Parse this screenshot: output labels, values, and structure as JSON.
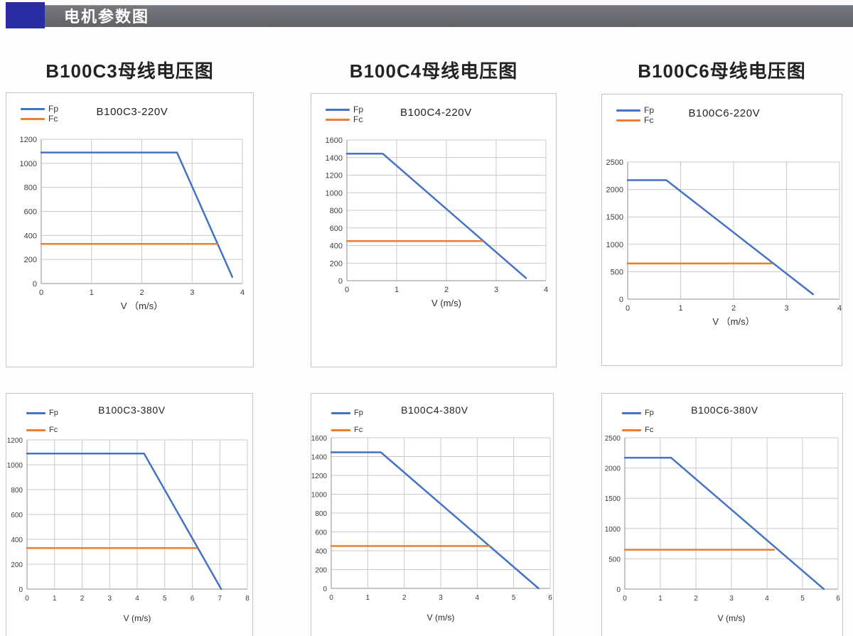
{
  "header": {
    "title": "电机参数图"
  },
  "section_titles": [
    "B100C3母线电压图",
    "B100C4母线电压图",
    "B100C6母线电压图"
  ],
  "colors": {
    "fp_blue": "#4472C4",
    "fc_orange": "#ED7D31",
    "header_accent": "#2a2da2",
    "header_bar": "#6a6a72"
  },
  "chart_data": [
    {
      "type": "line",
      "title": "B100C3-220V",
      "xlabel": "V （m/s）",
      "xlim": [
        0,
        4
      ],
      "xticks": [
        0,
        1,
        2,
        3,
        4
      ],
      "ylim": [
        0,
        1200
      ],
      "yticks": [
        0,
        200,
        400,
        600,
        800,
        1000,
        1200
      ],
      "legend": [
        "Fp",
        "Fc"
      ],
      "grid": true,
      "legend_position": "top-left",
      "series": [
        {
          "name": "Fp",
          "color": "#4472C4",
          "points": [
            [
              0,
              1090
            ],
            [
              2.7,
              1090
            ],
            [
              3.8,
              55
            ]
          ]
        },
        {
          "name": "Fc",
          "color": "#ED7D31",
          "points": [
            [
              0,
              330
            ],
            [
              3.5,
              330
            ]
          ]
        }
      ]
    },
    {
      "type": "line",
      "title": "B100C4-220V",
      "xlabel": "V (m/s)",
      "xlim": [
        0,
        4
      ],
      "xticks": [
        0,
        1,
        2,
        3,
        4
      ],
      "ylim": [
        0,
        1600
      ],
      "yticks": [
        0,
        200,
        400,
        600,
        800,
        1000,
        1200,
        1400,
        1600
      ],
      "legend": [
        "Fp",
        "Fc"
      ],
      "grid": true,
      "legend_position": "top-left",
      "series": [
        {
          "name": "Fp",
          "color": "#4472C4",
          "points": [
            [
              0,
              1445
            ],
            [
              0.72,
              1445
            ],
            [
              3.6,
              30
            ]
          ]
        },
        {
          "name": "Fc",
          "color": "#ED7D31",
          "points": [
            [
              0,
              450
            ],
            [
              2.72,
              450
            ]
          ]
        }
      ]
    },
    {
      "type": "line",
      "title": "B100C6-220V",
      "xlabel": "V （m/s）",
      "xlim": [
        0,
        4
      ],
      "xticks": [
        0,
        1,
        2,
        3,
        4
      ],
      "ylim": [
        0,
        2500
      ],
      "yticks": [
        0,
        500,
        1000,
        1500,
        2000,
        2500
      ],
      "legend": [
        "Fp",
        "Fc"
      ],
      "grid": true,
      "legend_position": "top-left",
      "series": [
        {
          "name": "Fp",
          "color": "#4472C4",
          "points": [
            [
              0,
              2170
            ],
            [
              0.73,
              2170
            ],
            [
              3.5,
              90
            ]
          ]
        },
        {
          "name": "Fc",
          "color": "#ED7D31",
          "points": [
            [
              0,
              650
            ],
            [
              2.72,
              650
            ]
          ]
        }
      ]
    },
    {
      "type": "line",
      "title": "B100C3-380V",
      "xlabel": "V (m/s)",
      "xlim": [
        0,
        8
      ],
      "xticks": [
        0,
        1,
        2,
        3,
        4,
        5,
        6,
        7,
        8
      ],
      "ylim": [
        0,
        1200
      ],
      "yticks": [
        0,
        200,
        400,
        600,
        800,
        1000,
        1200
      ],
      "legend": [
        "Fp",
        "Fc"
      ],
      "grid": true,
      "legend_position": "top-left",
      "series": [
        {
          "name": "Fp",
          "color": "#4472C4",
          "points": [
            [
              0,
              1090
            ],
            [
              4.25,
              1090
            ],
            [
              7.05,
              0
            ]
          ]
        },
        {
          "name": "Fc",
          "color": "#ED7D31",
          "points": [
            [
              0,
              330
            ],
            [
              6.15,
              330
            ]
          ]
        }
      ]
    },
    {
      "type": "line",
      "title": "B100C4-380V",
      "xlabel": "V (m/s)",
      "xlim": [
        0,
        6
      ],
      "xticks": [
        0,
        1,
        2,
        3,
        4,
        5,
        6
      ],
      "ylim": [
        0,
        1600
      ],
      "yticks": [
        0,
        200,
        400,
        600,
        800,
        1000,
        1200,
        1400,
        1600
      ],
      "legend": [
        "Fp",
        "Fc"
      ],
      "grid": true,
      "legend_position": "top-left",
      "series": [
        {
          "name": "Fp",
          "color": "#4472C4",
          "points": [
            [
              0,
              1445
            ],
            [
              1.36,
              1445
            ],
            [
              5.68,
              0
            ]
          ]
        },
        {
          "name": "Fc",
          "color": "#ED7D31",
          "points": [
            [
              0,
              450
            ],
            [
              4.32,
              450
            ]
          ]
        }
      ]
    },
    {
      "type": "line",
      "title": "B100C6-380V",
      "xlabel": "V (m/s)",
      "xlim": [
        0,
        6
      ],
      "xticks": [
        0,
        1,
        2,
        3,
        4,
        5,
        6
      ],
      "ylim": [
        0,
        2500
      ],
      "yticks": [
        0,
        500,
        1000,
        1500,
        2000,
        2500
      ],
      "legend": [
        "Fp",
        "Fc"
      ],
      "grid": true,
      "legend_position": "top-left",
      "series": [
        {
          "name": "Fp",
          "color": "#4472C4",
          "points": [
            [
              0,
              2170
            ],
            [
              1.3,
              2170
            ],
            [
              5.6,
              0
            ]
          ]
        },
        {
          "name": "Fc",
          "color": "#ED7D31",
          "points": [
            [
              0,
              650
            ],
            [
              4.2,
              650
            ]
          ]
        }
      ]
    }
  ]
}
